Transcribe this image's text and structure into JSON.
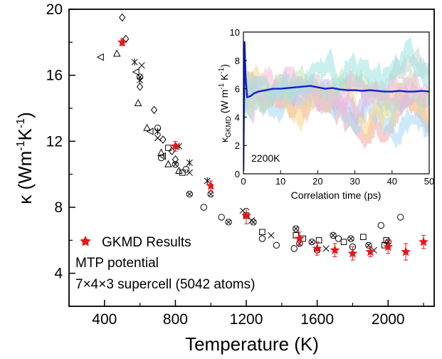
{
  "chart_data": [
    {
      "type": "scatter",
      "xlabel": "Temperature (K)",
      "ylabel": "κ (Wm⁻¹K⁻¹)",
      "xlim": [
        200,
        2260
      ],
      "ylim": [
        2,
        20
      ],
      "xticks": [
        400,
        800,
        1200,
        1600,
        2000
      ],
      "yticks": [
        4,
        8,
        12,
        16,
        20
      ],
      "legend": {
        "label": "GKMD Results",
        "placement": "lower-left"
      },
      "annotations": [
        "MTP potential",
        "7×4×3 supercell (5042 atoms)"
      ],
      "series": [
        {
          "name": "GKMD Results",
          "marker": "star",
          "color": "#e8151b",
          "x": [
            500,
            800,
            1000,
            1200,
            1500,
            1600,
            1700,
            1800,
            1900,
            2000,
            2100,
            2200
          ],
          "y": [
            18.0,
            11.7,
            9.3,
            7.5,
            6.1,
            5.5,
            5.4,
            5.2,
            5.3,
            5.6,
            5.3,
            5.9
          ],
          "err": [
            0.2,
            0.3,
            0.3,
            0.5,
            0.4,
            0.4,
            0.4,
            0.4,
            0.3,
            0.4,
            0.5,
            0.4
          ]
        },
        {
          "marker": "diamond",
          "x": [
            500,
            520,
            600,
            680,
            730,
            780,
            800
          ],
          "y": [
            19.5,
            18.2,
            15.3,
            13.9,
            12.1,
            11.4,
            10.9
          ]
        },
        {
          "marker": "triangle-up",
          "x": [
            470,
            590,
            640,
            720,
            760,
            820
          ],
          "y": [
            17.3,
            14.3,
            12.8,
            11.3,
            10.6,
            10.2
          ]
        },
        {
          "marker": "triangle-left",
          "x": [
            380,
            580,
            660,
            730
          ],
          "y": [
            17.1,
            16.2,
            12.6,
            11.1
          ]
        },
        {
          "marker": "asterisk",
          "x": [
            570,
            600,
            700,
            820,
            880,
            980,
            1140,
            1200
          ],
          "y": [
            16.8,
            15.7,
            12.6,
            11.7,
            10.7,
            9.6,
            8.7,
            8.0
          ]
        },
        {
          "marker": "cross",
          "x": [
            610,
            700,
            880,
            1180,
            1230,
            1340,
            1650,
            1920
          ],
          "y": [
            16.6,
            12.2,
            10.1,
            7.8,
            7.2,
            6.3,
            5.5,
            5.4
          ]
        },
        {
          "marker": "square",
          "x": [
            760,
            840,
            1200,
            1290,
            1480,
            1520,
            1610,
            1750,
            1860,
            1980,
            1990
          ],
          "y": [
            11.6,
            10.1,
            7.5,
            6.5,
            6.3,
            6.1,
            6.0,
            5.9,
            6.2,
            5.7,
            6.0
          ]
        },
        {
          "marker": "circle",
          "x": [
            700,
            720,
            860,
            960,
            1060,
            1290,
            1370,
            1470,
            1600,
            1720,
            1800,
            1960,
            2070
          ],
          "y": [
            12.8,
            11.0,
            10.3,
            8.0,
            7.4,
            6.1,
            5.7,
            5.5,
            5.4,
            6.1,
            5.6,
            6.9,
            7.4
          ]
        },
        {
          "marker": "circle-cross",
          "x": [
            600,
            800,
            880,
            1000,
            1100,
            1240,
            1480,
            1500,
            1570,
            1690,
            1790,
            1890,
            2000
          ],
          "y": [
            15.9,
            10.6,
            8.8,
            8.8,
            7.1,
            7.1,
            6.7,
            5.8,
            5.9,
            6.3,
            6.1,
            5.7,
            5.9
          ]
        }
      ]
    },
    {
      "type": "line",
      "xlabel": "Correlation time (ps)",
      "ylabel": "κGKMD (W m⁻¹ K⁻¹)",
      "xlim": [
        0,
        50
      ],
      "ylim": [
        0,
        10
      ],
      "xticks": [
        0,
        10,
        20,
        30,
        40,
        50
      ],
      "yticks": [
        0,
        2,
        4,
        6,
        8,
        10
      ],
      "annotation": "2200K",
      "series": [
        {
          "color": "#0b1fd6",
          "x": [
            0,
            0.3,
            0.6,
            1,
            2,
            3,
            4,
            5,
            6,
            8,
            10,
            12,
            14,
            16,
            18,
            20,
            22,
            24,
            26,
            28,
            30,
            32,
            34,
            36,
            38,
            40,
            42,
            44,
            46,
            48,
            50
          ],
          "y": [
            0.2,
            9.3,
            6.8,
            5.4,
            5.5,
            5.7,
            5.8,
            5.85,
            5.9,
            6.0,
            6.0,
            6.05,
            6.1,
            6.15,
            6.2,
            6.1,
            6.0,
            6.05,
            5.95,
            5.9,
            5.9,
            5.85,
            5.9,
            5.85,
            5.8,
            5.8,
            5.85,
            5.8,
            5.8,
            5.85,
            5.8
          ]
        }
      ],
      "background_band_colors": [
        "#f4a6a6",
        "#a6d8f4",
        "#f9d38c",
        "#c9b8f2",
        "#bfe8b0",
        "#f7b8d9",
        "#cfcfcf",
        "#9fe3e0"
      ]
    }
  ],
  "labels": {
    "axis_xlabel": "Temperature (K)",
    "axis_ylabel_main": "κ (Wm",
    "axis_ylabel_sup1": "-1",
    "axis_ylabel_mid": "K",
    "axis_ylabel_sup2": "-1",
    "axis_ylabel_end": ")",
    "legend_label": "GKMD Results",
    "annotation_1": "MTP potential",
    "annotation_2": "7×4×3 supercell (5042 atoms)",
    "inset_xlabel": "Correlation time (ps)",
    "inset_ylabel_k": "κ",
    "inset_ylabel_sub": "GKMD",
    "inset_ylabel_rest": " (W m",
    "inset_ylabel_sup1": "-1",
    "inset_ylabel_mid": " K",
    "inset_ylabel_sup2": "-1",
    "inset_ylabel_end": ")",
    "inset_annotation": "2200K"
  }
}
